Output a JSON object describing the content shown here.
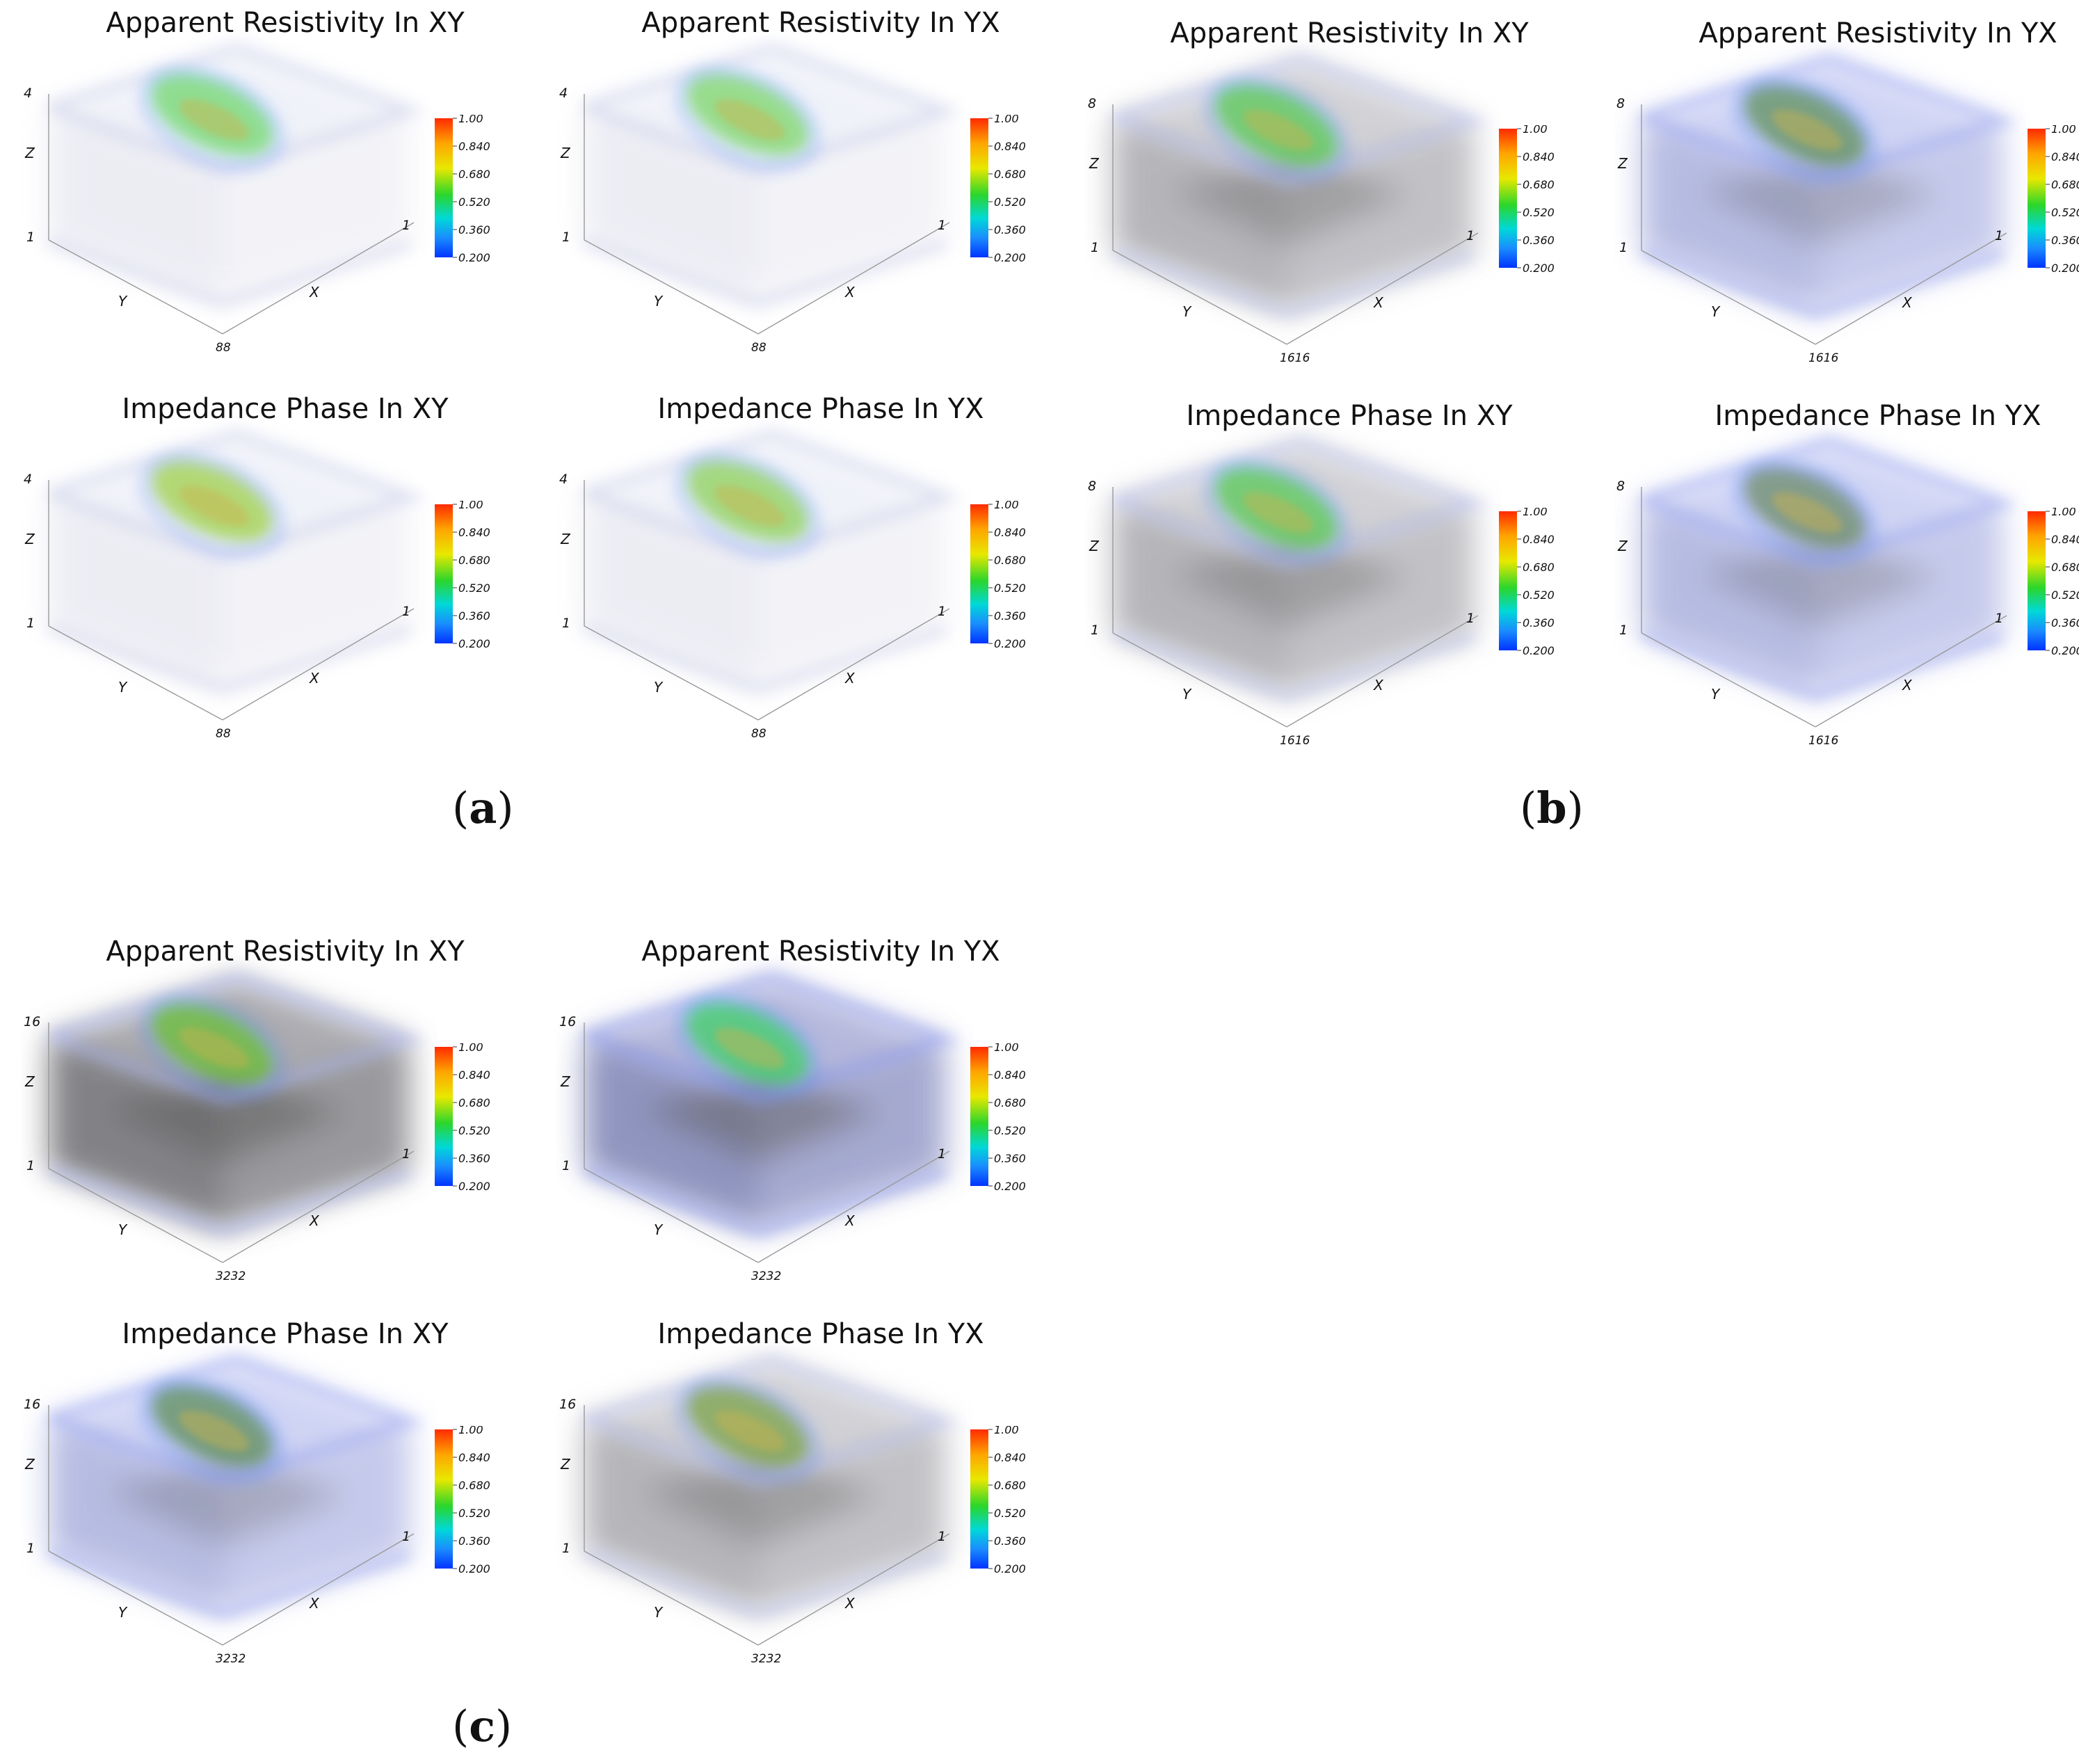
{
  "figure": {
    "colorbar": {
      "ticks": [
        "1.00",
        "0.840",
        "0.680",
        "0.520",
        "0.360",
        "0.200"
      ],
      "gradient": [
        "#ff2a00",
        "#ffa500",
        "#e8e800",
        "#2bd62b",
        "#00d8d8",
        "#1a8cff",
        "#0033ff"
      ]
    },
    "groups": [
      {
        "caption_letter": "a",
        "panels": [
          {
            "title": "Apparent Resistivity In XY",
            "z_top": "4",
            "z_label": "Z",
            "y_label": "Y",
            "x_label": "X",
            "origin_label": "1",
            "x_end": "1",
            "bottom_label": "88",
            "style": "light",
            "blob": "#6fd66f"
          },
          {
            "title": "Apparent Resistivity In YX",
            "z_top": "4",
            "z_label": "Z",
            "y_label": "Y",
            "x_label": "X",
            "origin_label": "1",
            "x_end": "1",
            "bottom_label": "88",
            "style": "light",
            "blob": "#7ad46a"
          },
          {
            "title": "Impedance Phase In XY",
            "z_top": "4",
            "z_label": "Z",
            "y_label": "Y",
            "x_label": "X",
            "origin_label": "1",
            "x_end": "1",
            "bottom_label": "88",
            "style": "light",
            "blob": "#9ccf4a"
          },
          {
            "title": "Impedance Phase In YX",
            "z_top": "4",
            "z_label": "Z",
            "y_label": "Y",
            "x_label": "X",
            "origin_label": "1",
            "x_end": "1",
            "bottom_label": "88",
            "style": "light",
            "blob": "#8bcf5a"
          }
        ]
      },
      {
        "caption_letter": "b",
        "panels": [
          {
            "title": "Apparent Resistivity In XY",
            "z_top": "8",
            "z_label": "Z",
            "y_label": "Y",
            "x_label": "X",
            "origin_label": "1",
            "x_end": "1",
            "bottom_label": "1616",
            "style": "gray",
            "blob": "#55c855"
          },
          {
            "title": "Apparent Resistivity In YX",
            "z_top": "8",
            "z_label": "Z",
            "y_label": "Y",
            "x_label": "X",
            "origin_label": "1",
            "x_end": "1",
            "bottom_label": "1616",
            "style": "blue",
            "blob": "#5e8f5e"
          },
          {
            "title": "Impedance Phase In XY",
            "z_top": "8",
            "z_label": "Z",
            "y_label": "Y",
            "x_label": "X",
            "origin_label": "1",
            "x_end": "1",
            "bottom_label": "1616",
            "style": "gray",
            "blob": "#55c855"
          },
          {
            "title": "Impedance Phase In YX",
            "z_top": "8",
            "z_label": "Z",
            "y_label": "Y",
            "x_label": "X",
            "origin_label": "1",
            "x_end": "1",
            "bottom_label": "1616",
            "style": "blue",
            "blob": "#6a8a6a"
          }
        ]
      },
      {
        "caption_letter": "c",
        "panels": [
          {
            "title": "Apparent Resistivity In XY",
            "z_top": "16",
            "z_label": "Z",
            "y_label": "Y",
            "x_label": "X",
            "origin_label": "1",
            "x_end": "1",
            "bottom_label": "3232",
            "style": "dark",
            "blob": "#6abf3a"
          },
          {
            "title": "Apparent Resistivity In YX",
            "z_top": "16",
            "z_label": "Z",
            "y_label": "Y",
            "x_label": "X",
            "origin_label": "1",
            "x_end": "1",
            "bottom_label": "3232",
            "style": "darkblue",
            "blob": "#3fcf6a"
          },
          {
            "title": "Impedance Phase In XY",
            "z_top": "16",
            "z_label": "Z",
            "y_label": "Y",
            "x_label": "X",
            "origin_label": "1",
            "x_end": "1",
            "bottom_label": "3232",
            "style": "blue",
            "blob": "#5b8c5b"
          },
          {
            "title": "Impedance Phase In YX",
            "z_top": "16",
            "z_label": "Z",
            "y_label": "Y",
            "x_label": "X",
            "origin_label": "1",
            "x_end": "1",
            "bottom_label": "3232",
            "style": "gray",
            "blob": "#7aa24a"
          }
        ]
      }
    ]
  }
}
